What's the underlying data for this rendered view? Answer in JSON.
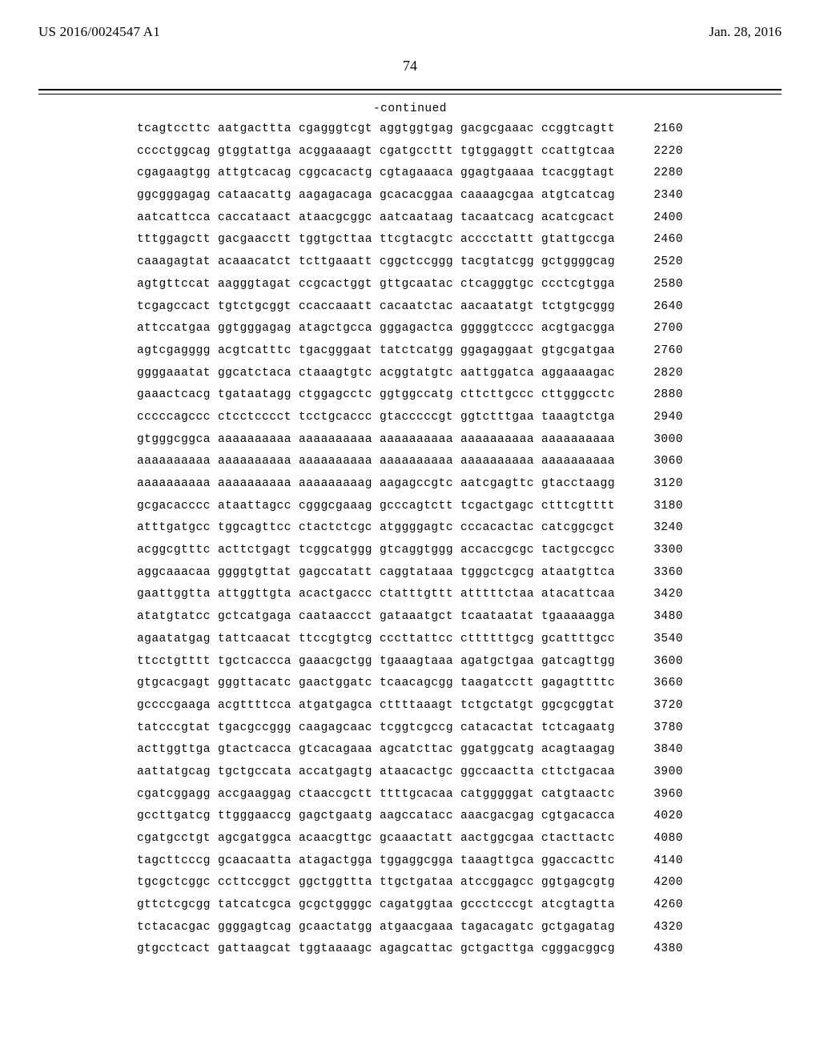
{
  "header": {
    "publication_number": "US 2016/0024547 A1",
    "publication_date": "Jan. 28, 2016"
  },
  "page_number": "74",
  "continued_label": "-continued",
  "sequence": {
    "start": 2160,
    "step": 60,
    "font_family": "Courier New",
    "font_size_pt": 11,
    "text_color": "#000000",
    "background_color": "#ffffff",
    "rows": [
      [
        "tcagtccttc",
        "aatgacttta",
        "cgagggtcgt",
        "aggtggtgag",
        "gacgcgaaac",
        "ccggtcagtt"
      ],
      [
        "cccctggcag",
        "gtggtattga",
        "acggaaaagt",
        "cgatgccttt",
        "tgtggaggtt",
        "ccattgtcaa"
      ],
      [
        "cgagaagtgg",
        "attgtcacag",
        "cggcacactg",
        "cgtagaaaca",
        "ggagtgaaaa",
        "tcacggtagt"
      ],
      [
        "ggcgggagag",
        "cataacattg",
        "aagagacaga",
        "gcacacggaa",
        "caaaagcgaa",
        "atgtcatcag"
      ],
      [
        "aatcattcca",
        "caccataact",
        "ataacgcggc",
        "aatcaataag",
        "tacaatcacg",
        "acatcgcact"
      ],
      [
        "tttggagctt",
        "gacgaacctt",
        "tggtgcttaa",
        "ttcgtacgtc",
        "acccctattt",
        "gtattgccga"
      ],
      [
        "caaagagtat",
        "acaaacatct",
        "tcttgaaatt",
        "cggctccggg",
        "tacgtatcgg",
        "gctggggcag"
      ],
      [
        "agtgttccat",
        "aagggtagat",
        "ccgcactggt",
        "gttgcaatac",
        "ctcagggtgc",
        "ccctcgtgga"
      ],
      [
        "tcgagccact",
        "tgtctgcggt",
        "ccaccaaatt",
        "cacaatctac",
        "aacaatatgt",
        "tctgtgcggg"
      ],
      [
        "attccatgaa",
        "ggtgggagag",
        "atagctgcca",
        "gggagactca",
        "gggggtcccc",
        "acgtgacgga"
      ],
      [
        "agtcgagggg",
        "acgtcatttc",
        "tgacgggaat",
        "tatctcatgg",
        "ggagaggaat",
        "gtgcgatgaa"
      ],
      [
        "ggggaaatat",
        "ggcatctaca",
        "ctaaagtgtc",
        "acggtatgtc",
        "aattggatca",
        "aggaaaagac"
      ],
      [
        "gaaactcacg",
        "tgataatagg",
        "ctggagcctc",
        "ggtggccatg",
        "cttcttgccc",
        "cttgggcctc"
      ],
      [
        "cccccagccc",
        "ctcctcccct",
        "tcctgcaccc",
        "gtacccccgt",
        "ggtctttgaa",
        "taaagtctga"
      ],
      [
        "gtgggcggca",
        "aaaaaaaaaa",
        "aaaaaaaaaa",
        "aaaaaaaaaa",
        "aaaaaaaaaa",
        "aaaaaaaaaa"
      ],
      [
        "aaaaaaaaaa",
        "aaaaaaaaaa",
        "aaaaaaaaaa",
        "aaaaaaaaaa",
        "aaaaaaaaaa",
        "aaaaaaaaaa"
      ],
      [
        "aaaaaaaaaa",
        "aaaaaaaaaa",
        "aaaaaaaaag",
        "aagagccgtc",
        "aatcgagttc",
        "gtacctaagg"
      ],
      [
        "gcgacacccc",
        "ataattagcc",
        "cgggcgaaag",
        "gcccagtctt",
        "tcgactgagc",
        "ctttcgtttt"
      ],
      [
        "atttgatgcc",
        "tggcagttcc",
        "ctactctcgc",
        "atggggagtc",
        "cccacactac",
        "catcggcgct"
      ],
      [
        "acggcgtttc",
        "acttctgagt",
        "tcggcatggg",
        "gtcaggtggg",
        "accaccgcgc",
        "tactgccgcc"
      ],
      [
        "aggcaaacaa",
        "ggggtgttat",
        "gagccatatt",
        "caggtataaa",
        "tgggctcgcg",
        "ataatgttca"
      ],
      [
        "gaattggtta",
        "attggttgta",
        "acactgaccc",
        "ctatttgttt",
        "atttttctaa",
        "atacattcaa"
      ],
      [
        "atatgtatcc",
        "gctcatgaga",
        "caataaccct",
        "gataaatgct",
        "tcaataatat",
        "tgaaaaagga"
      ],
      [
        "agaatatgag",
        "tattcaacat",
        "ttccgtgtcg",
        "cccttattcc",
        "cttttttgcg",
        "gcattttgcc"
      ],
      [
        "ttcctgtttt",
        "tgctcaccca",
        "gaaacgctgg",
        "tgaaagtaaa",
        "agatgctgaa",
        "gatcagttgg"
      ],
      [
        "gtgcacgagt",
        "gggttacatc",
        "gaactggatc",
        "tcaacagcgg",
        "taagatcctt",
        "gagagttttc"
      ],
      [
        "gccccgaaga",
        "acgttttcca",
        "atgatgagca",
        "cttttaaagt",
        "tctgctatgt",
        "ggcgcggtat"
      ],
      [
        "tatcccgtat",
        "tgacgccggg",
        "caagagcaac",
        "tcggtcgccg",
        "catacactat",
        "tctcagaatg"
      ],
      [
        "acttggttga",
        "gtactcacca",
        "gtcacagaaa",
        "agcatcttac",
        "ggatggcatg",
        "acagtaagag"
      ],
      [
        "aattatgcag",
        "tgctgccata",
        "accatgagtg",
        "ataacactgc",
        "ggccaactta",
        "cttctgacaa"
      ],
      [
        "cgatcggagg",
        "accgaaggag",
        "ctaaccgctt",
        "ttttgcacaa",
        "catgggggat",
        "catgtaactc"
      ],
      [
        "gccttgatcg",
        "ttgggaaccg",
        "gagctgaatg",
        "aagccatacc",
        "aaacgacgag",
        "cgtgacacca"
      ],
      [
        "cgatgcctgt",
        "agcgatggca",
        "acaacgttgc",
        "gcaaactatt",
        "aactggcgaa",
        "ctacttactc"
      ],
      [
        "tagcttcccg",
        "gcaacaatta",
        "atagactgga",
        "tggaggcgga",
        "taaagttgca",
        "ggaccacttc"
      ],
      [
        "tgcgctcggc",
        "ccttccggct",
        "ggctggttta",
        "ttgctgataa",
        "atccggagcc",
        "ggtgagcgtg"
      ],
      [
        "gttctcgcgg",
        "tatcatcgca",
        "gcgctggggc",
        "cagatggtaa",
        "gccctcccgt",
        "atcgtagtta"
      ],
      [
        "tctacacgac",
        "ggggagtcag",
        "gcaactatgg",
        "atgaacgaaa",
        "tagacagatc",
        "gctgagatag"
      ],
      [
        "gtgcctcact",
        "gattaagcat",
        "tggtaaaagc",
        "agagcattac",
        "gctgacttga",
        "cgggacggcg"
      ]
    ]
  }
}
